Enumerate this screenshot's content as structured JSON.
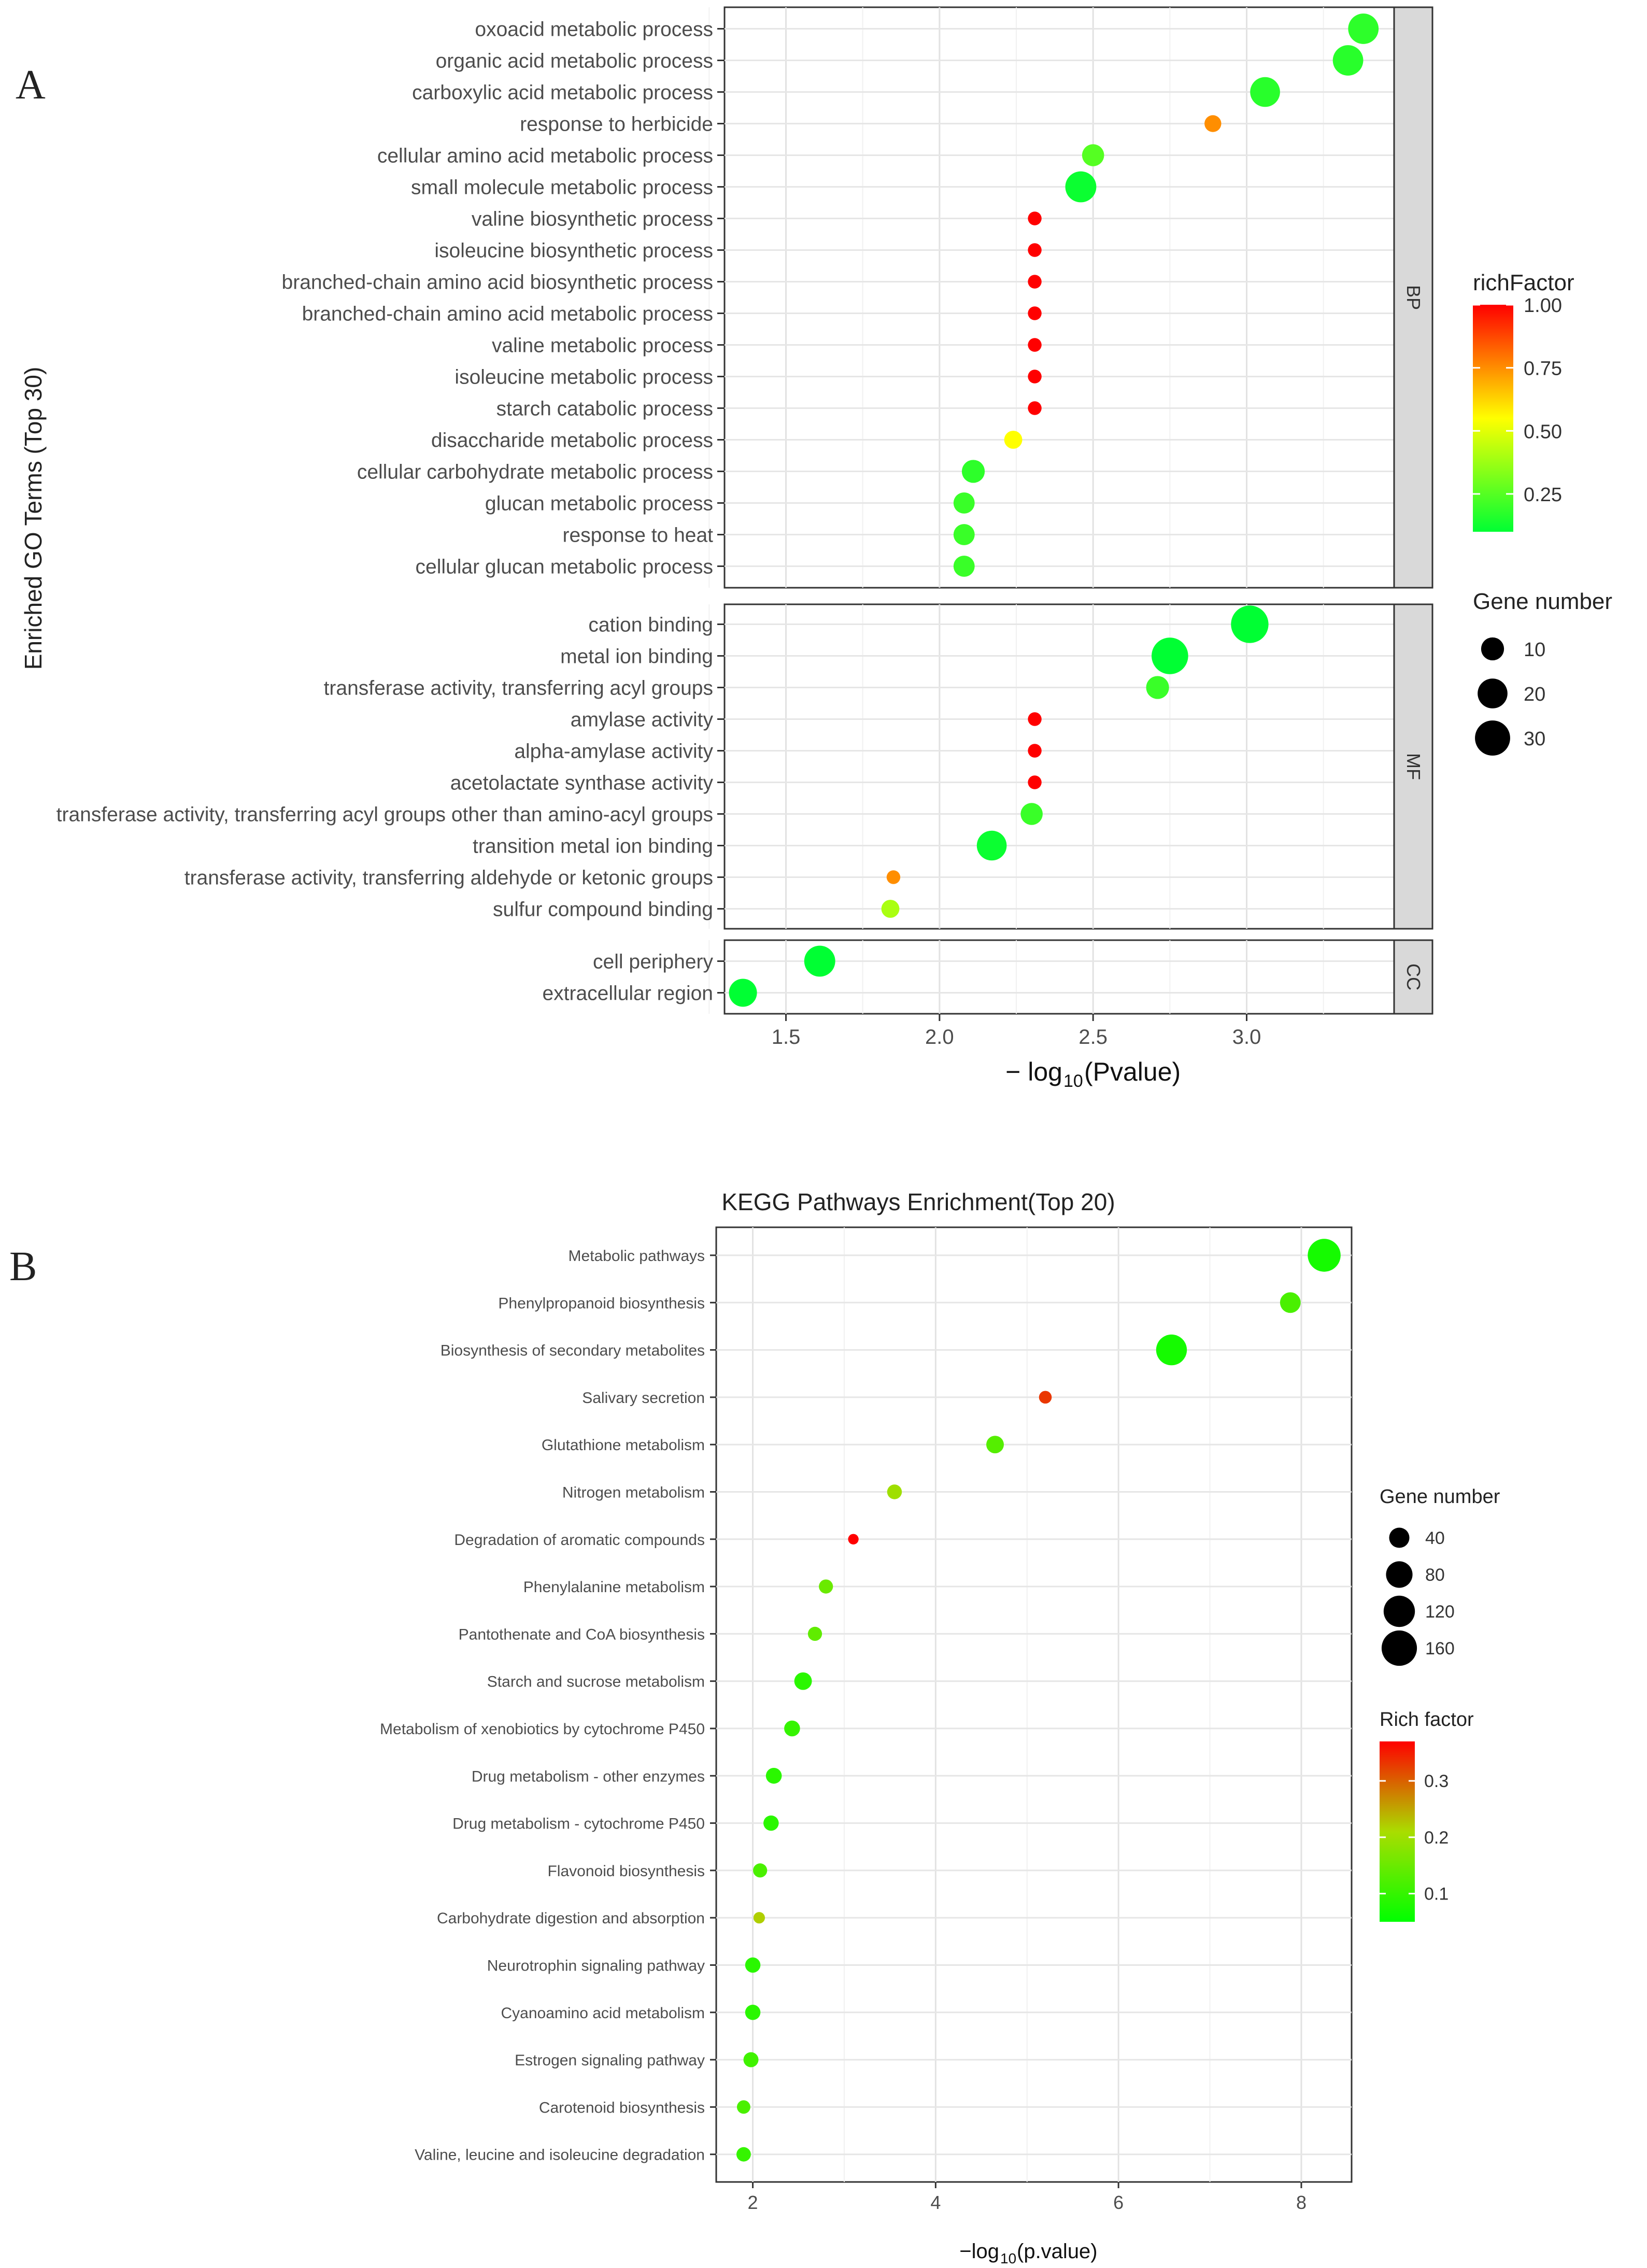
{
  "panels": {
    "A": {
      "label": "A"
    },
    "B": {
      "label": "B"
    }
  },
  "chart_data": [
    {
      "type": "scatter",
      "panel": "A",
      "title": "",
      "xlabel": "−log10(Pvalue)",
      "xlabel_prefix": "− log",
      "xlabel_sub": "10",
      "xlabel_suffix": "(Pvalue)",
      "ylabel": "Enriched GO Terms (Top 30)",
      "xlim": [
        1.3,
        3.48
      ],
      "xticks": [
        1.5,
        2.0,
        2.5,
        3.0
      ],
      "xtick_labels": [
        "1.5",
        "2.0",
        "2.5",
        "3.0"
      ],
      "grid": true,
      "color_legend": {
        "title": "richFactor",
        "ticks": [
          1.0,
          0.75,
          0.5,
          0.25
        ],
        "tick_labels": [
          "1.00",
          "0.75",
          "0.50",
          "0.25"
        ],
        "min": 0.1,
        "max": 1.0,
        "colors": [
          "#00ff33",
          "#ffff00",
          "#ff0000"
        ]
      },
      "size_legend": {
        "title": "Gene number",
        "values": [
          10,
          20,
          30
        ],
        "labels": [
          "10",
          "20",
          "30"
        ]
      },
      "facets": [
        {
          "name": "BP",
          "points": [
            {
              "term": "oxoacid metabolic process",
              "x": 3.38,
              "genes": 21,
              "rich": 0.18
            },
            {
              "term": "organic acid metabolic process",
              "x": 3.33,
              "genes": 21,
              "rich": 0.17
            },
            {
              "term": "carboxylic acid metabolic process",
              "x": 3.06,
              "genes": 20,
              "rich": 0.17
            },
            {
              "term": "response to herbicide",
              "x": 2.89,
              "genes": 4,
              "rich": 0.75
            },
            {
              "term": "cellular amino acid metabolic process",
              "x": 2.5,
              "genes": 9,
              "rich": 0.25
            },
            {
              "term": "small molecule metabolic process",
              "x": 2.46,
              "genes": 22,
              "rich": 0.12
            },
            {
              "term": "valine biosynthetic process",
              "x": 2.31,
              "genes": 2,
              "rich": 1.0
            },
            {
              "term": "isoleucine biosynthetic process",
              "x": 2.31,
              "genes": 2,
              "rich": 1.0
            },
            {
              "term": "branched-chain amino acid biosynthetic process",
              "x": 2.31,
              "genes": 2,
              "rich": 1.0
            },
            {
              "term": "branched-chain amino acid metabolic process",
              "x": 2.31,
              "genes": 2,
              "rich": 1.0
            },
            {
              "term": "valine metabolic process",
              "x": 2.31,
              "genes": 2,
              "rich": 1.0
            },
            {
              "term": "isoleucine metabolic process",
              "x": 2.31,
              "genes": 2,
              "rich": 1.0
            },
            {
              "term": "starch catabolic process",
              "x": 2.31,
              "genes": 2,
              "rich": 1.0
            },
            {
              "term": "disaccharide metabolic process",
              "x": 2.24,
              "genes": 5,
              "rich": 0.55
            },
            {
              "term": "cellular carbohydrate metabolic process",
              "x": 2.11,
              "genes": 10,
              "rich": 0.18
            },
            {
              "term": "glucan metabolic process",
              "x": 2.08,
              "genes": 8,
              "rich": 0.2
            },
            {
              "term": "response to heat",
              "x": 2.08,
              "genes": 8,
              "rich": 0.2
            },
            {
              "term": "cellular glucan metabolic process",
              "x": 2.08,
              "genes": 8,
              "rich": 0.2
            }
          ]
        },
        {
          "name": "MF",
          "points": [
            {
              "term": "cation binding",
              "x": 3.01,
              "genes": 35,
              "rich": 0.1
            },
            {
              "term": "metal ion binding",
              "x": 2.75,
              "genes": 33,
              "rich": 0.1
            },
            {
              "term": "transferase activity, transferring acyl groups",
              "x": 2.71,
              "genes": 10,
              "rich": 0.2
            },
            {
              "term": "amylase activity",
              "x": 2.31,
              "genes": 2,
              "rich": 1.0
            },
            {
              "term": "alpha-amylase activity",
              "x": 2.31,
              "genes": 2,
              "rich": 1.0
            },
            {
              "term": "acetolactate synthase activity",
              "x": 2.31,
              "genes": 2,
              "rich": 1.0
            },
            {
              "term": "transferase activity, transferring acyl groups other than amino-acyl groups",
              "x": 2.3,
              "genes": 9,
              "rich": 0.2
            },
            {
              "term": "transition metal ion binding",
              "x": 2.17,
              "genes": 20,
              "rich": 0.12
            },
            {
              "term": "transferase activity, transferring aldehyde or ketonic groups",
              "x": 1.85,
              "genes": 2,
              "rich": 0.75
            },
            {
              "term": "sulfur compound binding",
              "x": 1.84,
              "genes": 5,
              "rich": 0.4
            }
          ]
        },
        {
          "name": "CC",
          "points": [
            {
              "term": "cell periphery",
              "x": 1.61,
              "genes": 22,
              "rich": 0.1
            },
            {
              "term": "extracellular region",
              "x": 1.36,
              "genes": 17,
              "rich": 0.1
            }
          ]
        }
      ]
    },
    {
      "type": "scatter",
      "panel": "B",
      "title": "KEGG Pathways Enrichment(Top 20)",
      "xlabel": "−log10(p.value)",
      "xlabel_prefix": "−log",
      "xlabel_sub": "10",
      "xlabel_suffix": "(p.value)",
      "ylabel": "",
      "xlim": [
        1.6,
        8.55
      ],
      "xticks": [
        2,
        4,
        6,
        8
      ],
      "xtick_labels": [
        "2",
        "4",
        "6",
        "8"
      ],
      "grid": true,
      "size_legend": {
        "title": "Gene number",
        "values": [
          40,
          80,
          120,
          160
        ],
        "labels": [
          "40",
          "80",
          "120",
          "160"
        ]
      },
      "color_legend": {
        "title": "Rich factor",
        "ticks": [
          0.3,
          0.2,
          0.1
        ],
        "tick_labels": [
          "0.3",
          "0.2",
          "0.1"
        ],
        "min": 0.05,
        "max": 0.37,
        "colors": [
          "#00ff00",
          "#aadd00",
          "#ff0000"
        ]
      },
      "points": [
        {
          "term": "Metabolic pathways",
          "x": 8.25,
          "genes": 135,
          "rich": 0.07
        },
        {
          "term": "Phenylpropanoid biosynthesis",
          "x": 7.88,
          "genes": 42,
          "rich": 0.12
        },
        {
          "term": "Biosynthesis of secondary metabolites",
          "x": 6.58,
          "genes": 115,
          "rich": 0.07
        },
        {
          "term": "Salivary secretion",
          "x": 5.2,
          "genes": 10,
          "rich": 0.33
        },
        {
          "term": "Glutathione metabolism",
          "x": 4.65,
          "genes": 27,
          "rich": 0.13
        },
        {
          "term": "Nitrogen metabolism",
          "x": 3.55,
          "genes": 16,
          "rich": 0.2
        },
        {
          "term": "Degradation of aromatic compounds",
          "x": 3.1,
          "genes": 5,
          "rich": 0.37
        },
        {
          "term": "Phenylalanine metabolism",
          "x": 2.8,
          "genes": 14,
          "rich": 0.15
        },
        {
          "term": "Pantothenate and CoA biosynthesis",
          "x": 2.68,
          "genes": 14,
          "rich": 0.14
        },
        {
          "term": "Starch and sucrose metabolism",
          "x": 2.55,
          "genes": 27,
          "rich": 0.09
        },
        {
          "term": "Metabolism of xenobiotics by cytochrome P450",
          "x": 2.43,
          "genes": 20,
          "rich": 0.1
        },
        {
          "term": "Drug metabolism - other enzymes",
          "x": 2.23,
          "genes": 20,
          "rich": 0.09
        },
        {
          "term": "Drug metabolism - cytochrome P450",
          "x": 2.2,
          "genes": 18,
          "rich": 0.09
        },
        {
          "term": "Flavonoid biosynthesis",
          "x": 2.08,
          "genes": 14,
          "rich": 0.12
        },
        {
          "term": "Carbohydrate digestion and absorption",
          "x": 2.07,
          "genes": 7,
          "rich": 0.22
        },
        {
          "term": "Neurotrophin signaling pathway",
          "x": 2.0,
          "genes": 18,
          "rich": 0.09
        },
        {
          "term": "Cyanoamino acid metabolism",
          "x": 2.0,
          "genes": 18,
          "rich": 0.09
        },
        {
          "term": "Estrogen signaling pathway",
          "x": 1.98,
          "genes": 17,
          "rich": 0.11
        },
        {
          "term": "Carotenoid biosynthesis",
          "x": 1.9,
          "genes": 12,
          "rich": 0.12
        },
        {
          "term": "Valine, leucine and isoleucine degradation",
          "x": 1.9,
          "genes": 15,
          "rich": 0.1
        }
      ]
    }
  ]
}
